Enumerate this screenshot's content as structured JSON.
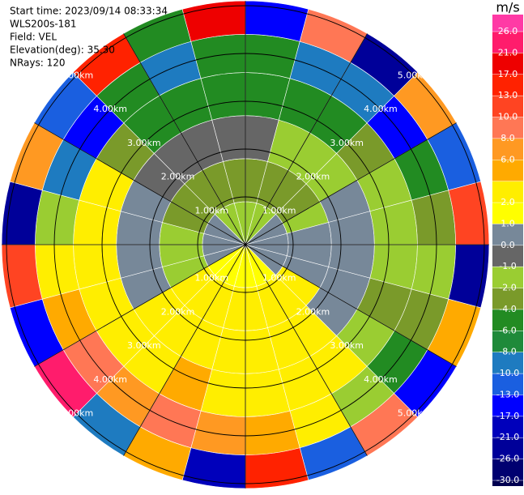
{
  "chart_data": {
    "type": "ppi",
    "header": [
      "Start time: 2023/09/14 08:33:34",
      "WLS200s-181",
      "Field: VEL",
      "Elevation(deg): 35.30",
      "NRays: 120"
    ],
    "range_bins": [
      0,
      0.9,
      1.8,
      2.7,
      3.6,
      4.4,
      5.1
    ],
    "sector_width": 15,
    "values": [
      [
        -1.5,
        -3,
        -0.5,
        -5,
        -5,
        -15
      ],
      [
        -1.5,
        -3,
        -1.5,
        -5,
        -9,
        9
      ],
      [
        -1.5,
        -3,
        -1.5,
        -5,
        -9,
        -21
      ],
      [
        0.5,
        -3,
        -1.5,
        -3,
        -15,
        7
      ],
      [
        0.5,
        -1.5,
        0.5,
        -1.5,
        -5,
        -11
      ],
      [
        0.5,
        0.5,
        0.5,
        -1.5,
        -3,
        11
      ],
      [
        0.5,
        0.5,
        0.5,
        -1.5,
        -1.5,
        -23
      ],
      [
        0.5,
        0.5,
        0.5,
        -3,
        -3,
        5
      ],
      [
        0.5,
        3,
        0.5,
        -1.5,
        -5,
        -15
      ],
      [
        1.5,
        3,
        3,
        3,
        -1.5,
        9
      ],
      [
        1.5,
        3,
        3,
        3,
        3,
        -11
      ],
      [
        1.5,
        3,
        3,
        3,
        5,
        15
      ],
      [
        1.5,
        3,
        3,
        3,
        7,
        -19
      ],
      [
        1.5,
        3,
        3,
        5,
        9,
        5
      ],
      [
        1.5,
        3,
        3,
        3,
        7,
        -9
      ],
      [
        1.5,
        3,
        3,
        3,
        9,
        23
      ],
      [
        0.5,
        -1.5,
        0.5,
        3,
        5,
        -15
      ],
      [
        0.5,
        -1.5,
        0.5,
        3,
        3,
        11
      ],
      [
        0.5,
        -1.5,
        0.5,
        3,
        -1.5,
        -21
      ],
      [
        0.5,
        -3,
        0.5,
        3,
        -9,
        7
      ],
      [
        0.5,
        -3,
        -0.5,
        -3,
        -15,
        -11
      ],
      [
        -1.5,
        -3,
        -0.5,
        -5,
        -5,
        15
      ],
      [
        -1.5,
        -3,
        -0.5,
        -5,
        -9,
        -5
      ],
      [
        -1.5,
        -3,
        -0.5,
        -5,
        -5,
        19
      ]
    ],
    "range_rings": [
      {
        "value": 1,
        "label": "1.00km"
      },
      {
        "value": 2,
        "label": "2.00km"
      },
      {
        "value": 3,
        "label": "3.00km"
      },
      {
        "value": 4,
        "label": "4.00km"
      },
      {
        "value": 5,
        "label": "5.00km"
      }
    ],
    "spoke_step": 30,
    "colorbar": {
      "title": "m/s",
      "ticks": [
        {
          "value": 26,
          "label": "26.0"
        },
        {
          "value": 21,
          "label": "21.0"
        },
        {
          "value": 17,
          "label": "17.0"
        },
        {
          "value": 13,
          "label": "13.0"
        },
        {
          "value": 10,
          "label": "10.0"
        },
        {
          "value": 8,
          "label": "8.0"
        },
        {
          "value": 6,
          "label": "6.0"
        },
        {
          "value": 4,
          "label": null
        },
        {
          "value": 2,
          "label": "2.0"
        },
        {
          "value": 1,
          "label": "1.0"
        },
        {
          "value": 0,
          "label": "0.0"
        },
        {
          "value": -1,
          "label": "-1.0"
        },
        {
          "value": -2,
          "label": "-2.0"
        },
        {
          "value": -4,
          "label": "-4.0"
        },
        {
          "value": -6,
          "label": "-6.0"
        },
        {
          "value": -8,
          "label": "-8.0"
        },
        {
          "value": -10,
          "label": "-10.0"
        },
        {
          "value": -13,
          "label": "-13.0"
        },
        {
          "value": -17,
          "label": "-17.0"
        },
        {
          "value": -21,
          "label": "-21.0"
        },
        {
          "value": -26,
          "label": "-26.0"
        },
        {
          "value": -30,
          "label": "-30.0"
        }
      ],
      "colors": [
        "#ff3aa5",
        "#ff1c6c",
        "#ee0000",
        "#ff2200",
        "#ff4422",
        "#ff7755",
        "#ff9922",
        "#ffaa00",
        "#ffee00",
        "#ffff00",
        "#778899",
        "#666666",
        "#9acd32",
        "#7a9a2a",
        "#228b22",
        "#1f8a3a",
        "#1e7bc0",
        "#1a5fe0",
        "#0000ff",
        "#0000bb",
        "#000099",
        "#000070",
        "#000050"
      ]
    }
  }
}
